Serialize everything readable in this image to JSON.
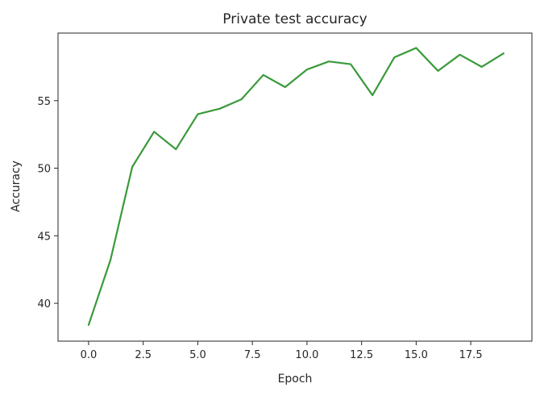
{
  "chart_data": {
    "type": "line",
    "title": "Private test accuracy",
    "xlabel": "Epoch",
    "ylabel": "Accuracy",
    "x": [
      0,
      1,
      2,
      3,
      4,
      5,
      6,
      7,
      8,
      9,
      10,
      11,
      12,
      13,
      14,
      15,
      16,
      17,
      18,
      19
    ],
    "series": [
      {
        "values": [
          38.4,
          43.2,
          50.1,
          52.7,
          51.4,
          54.0,
          54.4,
          55.1,
          56.9,
          56.0,
          57.3,
          57.9,
          57.7,
          55.4,
          58.2,
          58.9,
          57.2,
          58.4,
          57.5,
          58.5
        ],
        "color": "#3a9a3a"
      }
    ],
    "xlim": [
      -1.4,
      20.3
    ],
    "ylim": [
      37.2,
      60.0
    ],
    "xticks": [
      0.0,
      2.5,
      5.0,
      7.5,
      10.0,
      12.5,
      15.0,
      17.5
    ],
    "xtick_labels": [
      "0.0",
      "2.5",
      "5.0",
      "7.5",
      "10.0",
      "12.5",
      "15.0",
      "17.5"
    ],
    "yticks": [
      40,
      45,
      50,
      55
    ],
    "ytick_labels": [
      "40",
      "45",
      "50",
      "55"
    ],
    "grid": false,
    "legend": "none"
  }
}
